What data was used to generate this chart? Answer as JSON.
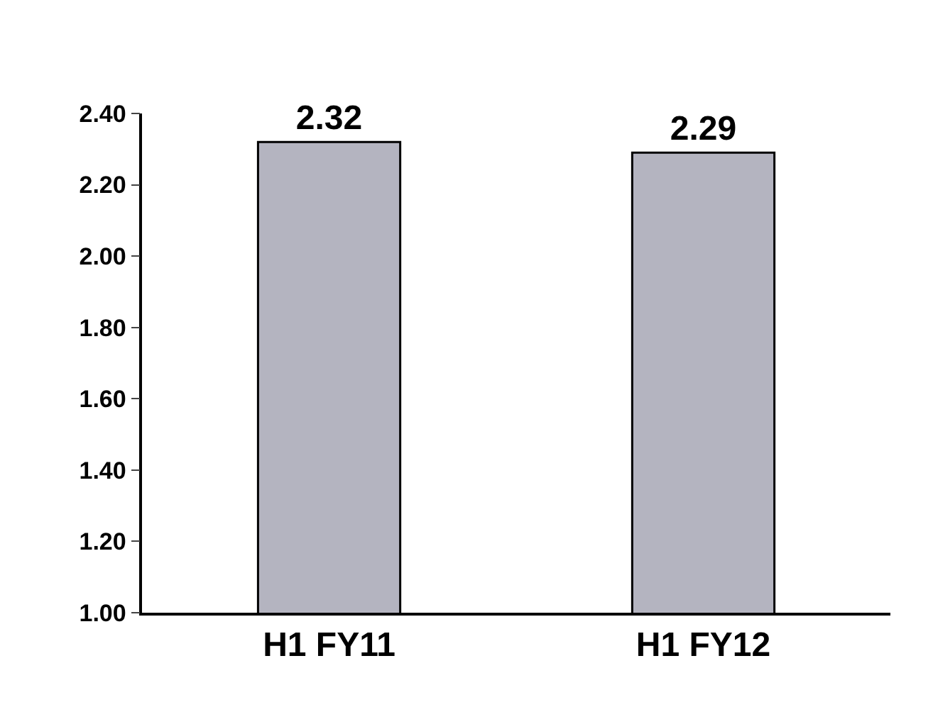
{
  "chart_data": {
    "type": "bar",
    "categories": [
      "H1 FY11",
      "H1 FY12"
    ],
    "values": [
      2.32,
      2.29
    ],
    "color": "#b4b4c0",
    "ylim": [
      1.0,
      2.4
    ],
    "yticks": [
      {
        "value": 1.0,
        "label": "1.00"
      },
      {
        "value": 1.2,
        "label": "1.20"
      },
      {
        "value": 1.4,
        "label": "1.40"
      },
      {
        "value": 1.6,
        "label": "1.60"
      },
      {
        "value": 1.8,
        "label": "1.80"
      },
      {
        "value": 2.0,
        "label": "2.00"
      },
      {
        "value": 2.2,
        "label": "2.20"
      },
      {
        "value": 2.4,
        "label": "2.40"
      }
    ],
    "data_labels": true,
    "legend": false
  }
}
